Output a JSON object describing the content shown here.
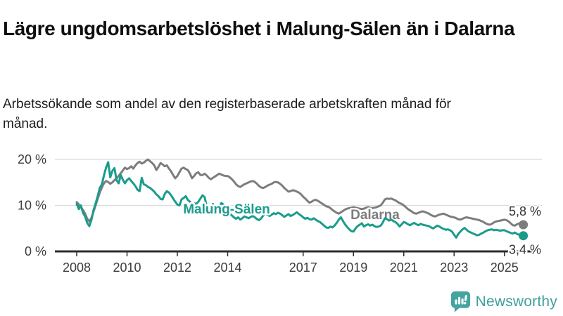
{
  "header": {
    "title": "Lägre ungdomsarbetslöshet i Malung-Sälen än i Dalarna",
    "subtitle": "Arbetssökande som andel av den registerbaserade arbetskraften månad för månad."
  },
  "branding": {
    "name": "Newsworthy",
    "color": "#3fa19d"
  },
  "chart_data": {
    "type": "line",
    "title": "Lägre ungdomsarbetslöshet i Malung-Sälen än i Dalarna",
    "subtitle": "Arbetssökande som andel av den registerbaserade arbetskraften månad för månad.",
    "unit": "%",
    "x_start": "2008-01",
    "x_end": "2025-10",
    "x_interval": "monthly",
    "x_ticks": [
      2008,
      2010,
      2012,
      2014,
      2017,
      2019,
      2021,
      2023,
      2025
    ],
    "y_ticks": [
      0,
      10,
      20
    ],
    "y_tick_labels": [
      "0 %",
      "10 %",
      "20 %"
    ],
    "ylim": [
      0,
      21.5
    ],
    "grid": "horizontal",
    "series": [
      {
        "name": "Dalarna",
        "color": "#7d7d7d",
        "end_label": "5,8 %",
        "end_value": 5.8,
        "values": [
          10.7,
          10.2,
          9.6,
          9.0,
          8.2,
          7.1,
          6.5,
          7.3,
          8.6,
          10.0,
          11.4,
          12.8,
          13.9,
          14.8,
          15.3,
          15.1,
          14.7,
          15.0,
          15.5,
          15.8,
          16.4,
          17.0,
          17.6,
          18.2,
          17.9,
          18.1,
          18.5,
          18.0,
          18.7,
          19.2,
          19.5,
          19.1,
          19.3,
          19.7,
          20.0,
          19.6,
          19.2,
          18.7,
          17.7,
          18.4,
          19.2,
          18.9,
          18.5,
          18.7,
          18.0,
          17.4,
          16.6,
          15.9,
          16.4,
          17.2,
          18.0,
          18.2,
          17.9,
          17.7,
          16.9,
          15.9,
          16.4,
          17.0,
          17.2,
          16.6,
          16.6,
          16.9,
          16.5,
          16.0,
          15.7,
          16.0,
          16.3,
          16.6,
          16.9,
          16.7,
          16.5,
          16.4,
          16.4,
          16.1,
          15.7,
          15.2,
          14.6,
          14.2,
          14.0,
          14.3,
          14.6,
          14.8,
          15.0,
          15.2,
          15.3,
          15.1,
          14.7,
          14.2,
          13.9,
          13.8,
          14.0,
          14.3,
          14.5,
          14.7,
          15.0,
          15.1,
          15.0,
          14.7,
          14.3,
          13.8,
          13.4,
          13.0,
          13.1,
          13.3,
          13.2,
          13.0,
          12.8,
          12.4,
          11.9,
          11.5,
          11.0,
          10.6,
          10.8,
          11.1,
          11.2,
          11.0,
          10.7,
          10.4,
          10.1,
          9.8,
          9.7,
          9.4,
          9.0,
          8.7,
          8.4,
          8.2,
          8.5,
          8.8,
          9.1,
          9.3,
          9.4,
          9.5,
          9.6,
          9.5,
          9.4,
          9.3,
          9.2,
          9.3,
          9.5,
          9.6,
          9.5,
          9.4,
          9.5,
          9.6,
          9.8,
          10.0,
          10.6,
          11.3,
          11.5,
          11.4,
          11.5,
          11.3,
          11.1,
          10.8,
          10.5,
          10.3,
          10.0,
          9.6,
          9.2,
          8.9,
          8.6,
          8.3,
          8.2,
          8.4,
          8.6,
          8.7,
          8.6,
          8.4,
          8.2,
          7.9,
          7.7,
          7.6,
          7.8,
          8.0,
          8.1,
          8.2,
          8.0,
          7.8,
          7.6,
          7.5,
          7.4,
          7.2,
          7.0,
          6.9,
          7.1,
          7.3,
          7.4,
          7.3,
          7.2,
          7.1,
          7.0,
          6.9,
          6.8,
          6.6,
          6.4,
          6.1,
          5.9,
          5.8,
          6.0,
          6.3,
          6.5,
          6.6,
          6.7,
          6.8,
          6.9,
          6.8,
          6.5,
          6.1,
          5.7,
          5.6,
          5.9,
          6.1,
          5.9,
          5.8
        ]
      },
      {
        "name": "Malung-Sälen",
        "color": "#1a9c8c",
        "end_label": "3,4 %",
        "end_value": 3.4,
        "values": [
          10.3,
          9.2,
          10.0,
          8.4,
          7.6,
          6.2,
          5.5,
          6.8,
          8.9,
          10.4,
          12.0,
          13.8,
          14.6,
          16.5,
          18.2,
          19.4,
          16.1,
          17.5,
          18.1,
          15.5,
          14.8,
          16.6,
          15.6,
          14.8,
          15.5,
          15.9,
          15.3,
          14.8,
          14.2,
          13.4,
          13.1,
          16.0,
          14.6,
          14.4,
          14.0,
          13.8,
          13.4,
          13.0,
          12.4,
          12.0,
          11.4,
          11.3,
          12.5,
          13.1,
          12.8,
          12.2,
          11.5,
          10.8,
          10.2,
          10.0,
          11.3,
          11.6,
          12.0,
          11.2,
          10.8,
          9.8,
          10.5,
          10.3,
          10.8,
          11.5,
          12.2,
          11.8,
          9.8,
          9.0,
          9.5,
          10.3,
          8.7,
          8.5,
          9.8,
          10.5,
          10.2,
          9.4,
          8.8,
          8.2,
          7.8,
          7.4,
          7.1,
          7.4,
          6.9,
          7.2,
          7.6,
          7.4,
          7.2,
          7.5,
          7.7,
          7.4,
          7.0,
          6.8,
          7.2,
          7.8,
          8.2,
          8.0,
          7.7,
          8.0,
          8.3,
          8.1,
          8.4,
          8.2,
          7.9,
          7.5,
          7.8,
          8.1,
          7.7,
          7.9,
          8.2,
          8.5,
          8.1,
          7.8,
          7.4,
          7.1,
          7.3,
          7.0,
          6.9,
          7.2,
          6.9,
          6.6,
          6.4,
          6.0,
          5.6,
          5.2,
          5.1,
          5.4,
          5.2,
          5.6,
          6.2,
          6.9,
          7.4,
          6.6,
          5.9,
          5.3,
          4.8,
          4.4,
          4.3,
          5.0,
          5.5,
          5.8,
          6.1,
          5.4,
          5.7,
          5.9,
          5.6,
          5.8,
          5.5,
          5.3,
          5.4,
          5.6,
          6.3,
          7.2,
          7.0,
          6.7,
          6.9,
          6.6,
          6.4,
          6.0,
          5.4,
          5.9,
          6.4,
          6.2,
          5.9,
          5.7,
          6.0,
          6.2,
          5.9,
          5.7,
          6.0,
          5.8,
          5.7,
          5.6,
          5.5,
          5.2,
          5.0,
          5.3,
          5.6,
          5.4,
          5.1,
          4.9,
          4.7,
          4.8,
          4.6,
          4.3,
          3.6,
          3.0,
          3.8,
          4.3,
          4.8,
          5.1,
          4.7,
          4.3,
          4.1,
          3.9,
          3.7,
          3.5,
          3.6,
          3.9,
          4.1,
          4.4,
          4.6,
          4.7,
          4.8,
          4.6,
          4.7,
          4.6,
          4.5,
          4.6,
          4.6,
          4.4,
          4.2,
          4.0,
          3.9,
          4.1,
          3.8,
          3.6,
          3.5,
          3.4
        ]
      }
    ]
  }
}
